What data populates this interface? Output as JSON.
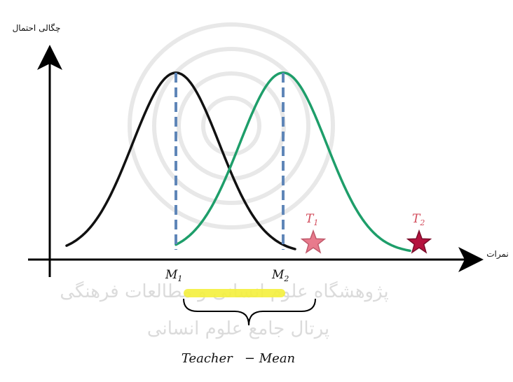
{
  "axes": {
    "y_label": "چگالی احتمال",
    "x_label": "نمرات"
  },
  "markers": {
    "m1": {
      "letter": "M",
      "sub": "1"
    },
    "m2": {
      "letter": "M",
      "sub": "2"
    },
    "t1": {
      "letter": "T",
      "sub": "1"
    },
    "t2": {
      "letter": "T",
      "sub": "2"
    }
  },
  "brace_label": "Teacher   − Mean",
  "watermark": {
    "line1": "پژوهشگاه علوم انسانی و مطالعات فرهنگی",
    "line2": "پرتال جامع علوم انسانی"
  },
  "colors": {
    "curve_teacher1": "#111111",
    "curve_teacher2": "#1e9e6a",
    "mean_lines": "#5f86b8",
    "star_t1": "#e87a8c",
    "star_t2": "#b5123e",
    "label_t": "#d24a5a",
    "highlight": "#f4ef3c"
  }
}
